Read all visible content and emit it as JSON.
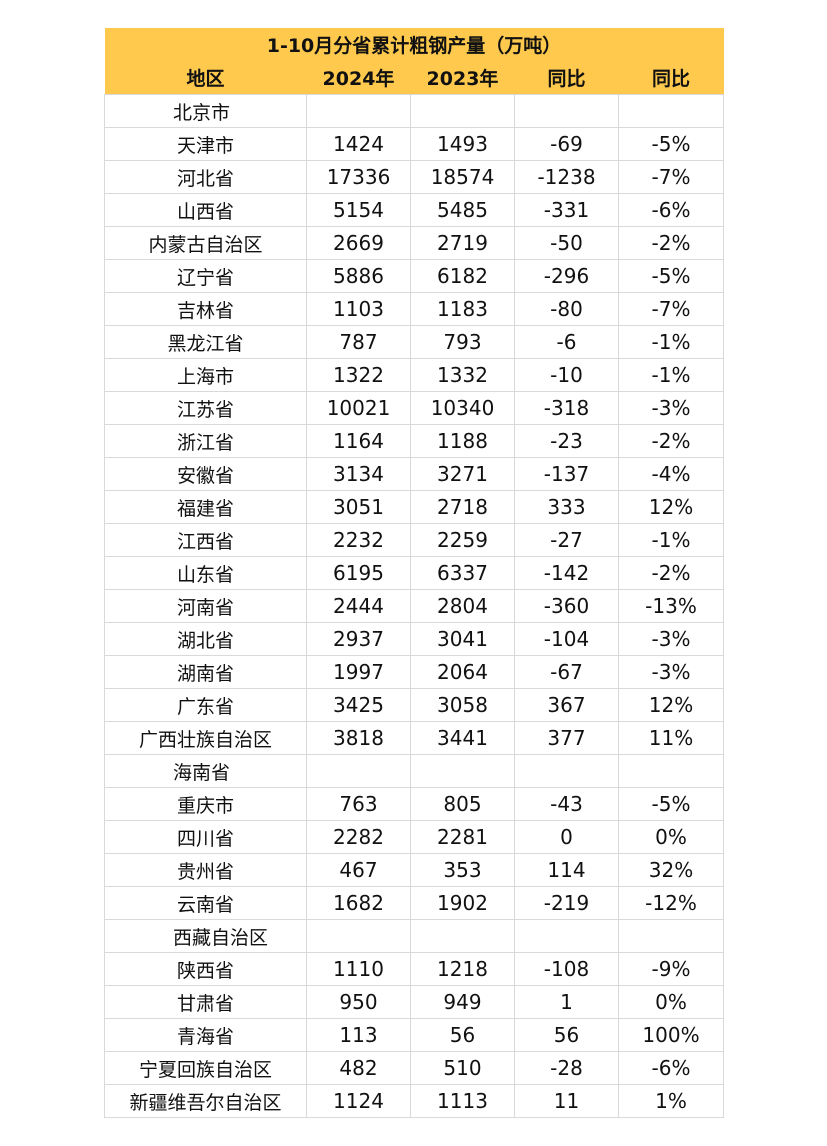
{
  "table": {
    "title": "1-10月分省累计粗钢产量（万吨）",
    "headers": [
      "地区",
      "2024年",
      "2023年",
      "同比",
      "同比"
    ],
    "rows": [
      {
        "region": "北京市",
        "y2024": "",
        "y2023": "",
        "diff": "",
        "pct": ""
      },
      {
        "region": "天津市",
        "y2024": "1424",
        "y2023": "1493",
        "diff": "-69",
        "pct": "-5%"
      },
      {
        "region": "河北省",
        "y2024": "17336",
        "y2023": "18574",
        "diff": "-1238",
        "pct": "-7%"
      },
      {
        "region": "山西省",
        "y2024": "5154",
        "y2023": "5485",
        "diff": "-331",
        "pct": "-6%"
      },
      {
        "region": "内蒙古自治区",
        "y2024": "2669",
        "y2023": "2719",
        "diff": "-50",
        "pct": "-2%"
      },
      {
        "region": "辽宁省",
        "y2024": "5886",
        "y2023": "6182",
        "diff": "-296",
        "pct": "-5%"
      },
      {
        "region": "吉林省",
        "y2024": "1103",
        "y2023": "1183",
        "diff": "-80",
        "pct": "-7%"
      },
      {
        "region": "黑龙江省",
        "y2024": "787",
        "y2023": "793",
        "diff": "-6",
        "pct": "-1%"
      },
      {
        "region": "上海市",
        "y2024": "1322",
        "y2023": "1332",
        "diff": "-10",
        "pct": "-1%"
      },
      {
        "region": "江苏省",
        "y2024": "10021",
        "y2023": "10340",
        "diff": "-318",
        "pct": "-3%"
      },
      {
        "region": "浙江省",
        "y2024": "1164",
        "y2023": "1188",
        "diff": "-23",
        "pct": "-2%"
      },
      {
        "region": "安徽省",
        "y2024": "3134",
        "y2023": "3271",
        "diff": "-137",
        "pct": "-4%"
      },
      {
        "region": "福建省",
        "y2024": "3051",
        "y2023": "2718",
        "diff": "333",
        "pct": "12%"
      },
      {
        "region": "江西省",
        "y2024": "2232",
        "y2023": "2259",
        "diff": "-27",
        "pct": "-1%"
      },
      {
        "region": "山东省",
        "y2024": "6195",
        "y2023": "6337",
        "diff": "-142",
        "pct": "-2%"
      },
      {
        "region": "河南省",
        "y2024": "2444",
        "y2023": "2804",
        "diff": "-360",
        "pct": "-13%"
      },
      {
        "region": "湖北省",
        "y2024": "2937",
        "y2023": "3041",
        "diff": "-104",
        "pct": "-3%"
      },
      {
        "region": "湖南省",
        "y2024": "1997",
        "y2023": "2064",
        "diff": "-67",
        "pct": "-3%"
      },
      {
        "region": "广东省",
        "y2024": "3425",
        "y2023": "3058",
        "diff": "367",
        "pct": "12%"
      },
      {
        "region": "广西壮族自治区",
        "y2024": "3818",
        "y2023": "3441",
        "diff": "377",
        "pct": "11%"
      },
      {
        "region": "海南省",
        "y2024": "",
        "y2023": "",
        "diff": "",
        "pct": ""
      },
      {
        "region": "重庆市",
        "y2024": "763",
        "y2023": "805",
        "diff": "-43",
        "pct": "-5%"
      },
      {
        "region": "四川省",
        "y2024": "2282",
        "y2023": "2281",
        "diff": "0",
        "pct": "0%"
      },
      {
        "region": "贵州省",
        "y2024": "467",
        "y2023": "353",
        "diff": "114",
        "pct": "32%"
      },
      {
        "region": "云南省",
        "y2024": "1682",
        "y2023": "1902",
        "diff": "-219",
        "pct": "-12%"
      },
      {
        "region": "西藏自治区",
        "y2024": "",
        "y2023": "",
        "diff": "",
        "pct": ""
      },
      {
        "region": "陕西省",
        "y2024": "1110",
        "y2023": "1218",
        "diff": "-108",
        "pct": "-9%"
      },
      {
        "region": "甘肃省",
        "y2024": "950",
        "y2023": "949",
        "diff": "1",
        "pct": "0%"
      },
      {
        "region": "青海省",
        "y2024": "113",
        "y2023": "56",
        "diff": "56",
        "pct": "100%"
      },
      {
        "region": "宁夏回族自治区",
        "y2024": "482",
        "y2023": "510",
        "diff": "-28",
        "pct": "-6%"
      },
      {
        "region": "新疆维吾尔自治区",
        "y2024": "1124",
        "y2023": "1113",
        "diff": "11",
        "pct": "1%"
      }
    ]
  },
  "colors": {
    "header_background": "#ffc94d",
    "grid_line": "#d9d9d9",
    "text": "#111111"
  }
}
